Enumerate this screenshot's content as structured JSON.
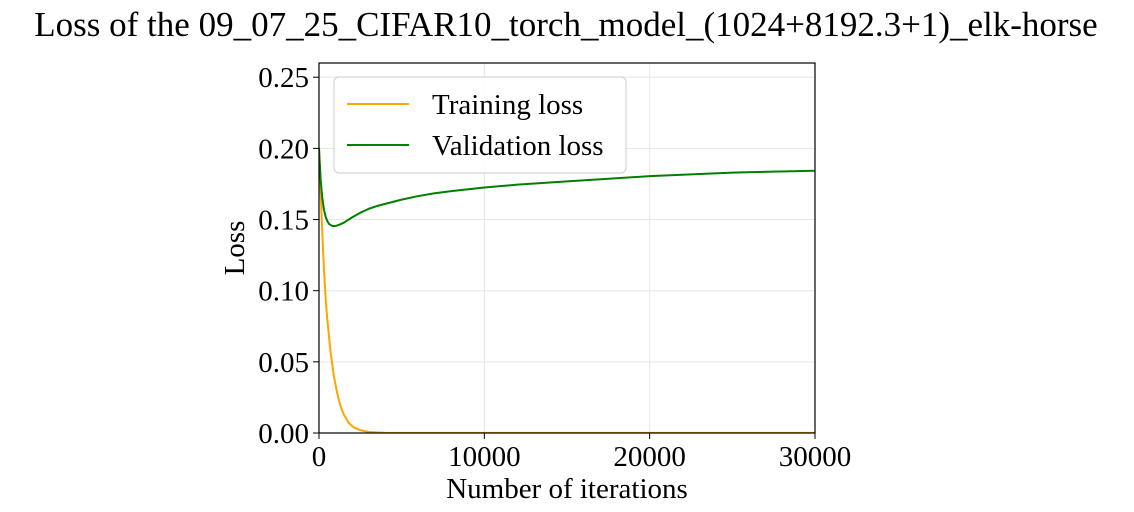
{
  "chart_data": {
    "type": "line",
    "title": "Loss of the 09_07_25_CIFAR10_torch_model_(1024+8192.3+1)_elk-horse",
    "xlabel": "Number of iterations",
    "ylabel": "Loss",
    "xlim": [
      0,
      30000
    ],
    "ylim": [
      0,
      0.26
    ],
    "x_ticks": [
      0,
      10000,
      20000,
      30000
    ],
    "y_ticks": [
      0.0,
      0.05,
      0.1,
      0.15,
      0.2,
      0.25
    ],
    "x_tick_labels": [
      "0",
      "10000",
      "20000",
      "30000"
    ],
    "y_tick_labels": [
      "0.00",
      "0.05",
      "0.10",
      "0.15",
      "0.20",
      "0.25"
    ],
    "grid": true,
    "legend_position": "upper-left",
    "series": [
      {
        "name": "Training loss",
        "color": "#ffa500",
        "x": [
          0,
          100,
          200,
          300,
          400,
          500,
          700,
          900,
          1100,
          1300,
          1500,
          1800,
          2100,
          2500,
          3000,
          3500,
          4000,
          5000,
          6000,
          8000,
          10000,
          15000,
          20000,
          25000,
          30000
        ],
        "y": [
          0.2,
          0.17,
          0.14,
          0.115,
          0.095,
          0.08,
          0.057,
          0.04,
          0.028,
          0.019,
          0.013,
          0.007,
          0.004,
          0.002,
          0.0008,
          0.0004,
          0.0002,
          0.0001,
          0.0001,
          0.0001,
          0.0001,
          0.0001,
          0.0001,
          0.0001,
          0.0001
        ]
      },
      {
        "name": "Validation loss",
        "color": "#008000",
        "x": [
          0,
          100,
          200,
          300,
          400,
          500,
          600,
          800,
          1000,
          1200,
          1500,
          2000,
          2500,
          3000,
          3500,
          4000,
          5000,
          6000,
          7000,
          8000,
          10000,
          12000,
          15000,
          20000,
          25000,
          30000
        ],
        "y": [
          0.2,
          0.178,
          0.165,
          0.157,
          0.152,
          0.149,
          0.147,
          0.1455,
          0.1455,
          0.1462,
          0.1478,
          0.1515,
          0.1548,
          0.1575,
          0.1595,
          0.161,
          0.164,
          0.1665,
          0.1685,
          0.17,
          0.1725,
          0.1745,
          0.1768,
          0.1805,
          0.183,
          0.1843
        ]
      }
    ]
  }
}
